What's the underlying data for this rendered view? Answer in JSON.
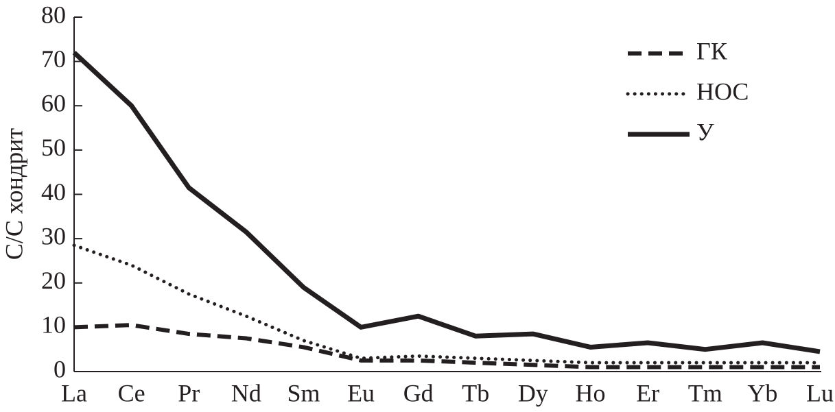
{
  "chart_data": {
    "type": "line",
    "y_label": "C/C хондрит",
    "categories": [
      "La",
      "Ce",
      "Pr",
      "Nd",
      "Sm",
      "Eu",
      "Gd",
      "Tb",
      "Dy",
      "Ho",
      "Er",
      "Tm",
      "Yb",
      "Lu"
    ],
    "series": [
      {
        "name": "ГК",
        "color": "#231f20",
        "style": "dashed",
        "values": [
          10,
          10.5,
          8.5,
          7.5,
          5.5,
          2.5,
          2.5,
          2,
          1.5,
          1,
          1,
          1,
          1,
          1
        ]
      },
      {
        "name": "НОС",
        "color": "#231f20",
        "style": "dotted",
        "values": [
          28.5,
          24,
          17.5,
          12.5,
          7,
          3,
          3.5,
          3,
          2.5,
          2,
          2,
          2,
          2,
          2
        ]
      },
      {
        "name": "У",
        "color": "#231f20",
        "style": "solid",
        "values": [
          72,
          60,
          41.5,
          31.5,
          19,
          10,
          12.5,
          8,
          8.5,
          5.5,
          6.5,
          5,
          6.5,
          4.5
        ]
      }
    ],
    "ylim": [
      0,
      80
    ],
    "yticks": [
      0,
      10,
      20,
      30,
      40,
      50,
      60,
      70,
      80
    ],
    "legend": "upper right"
  }
}
